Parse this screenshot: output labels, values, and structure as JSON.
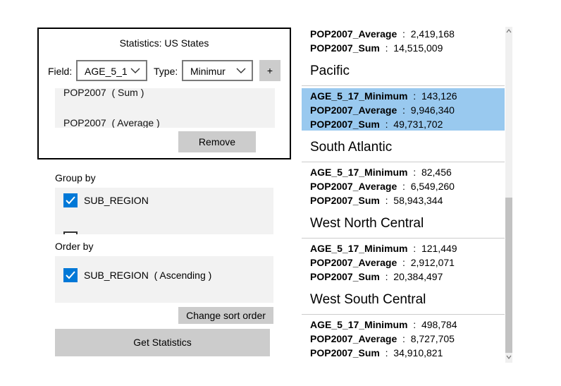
{
  "statistics": {
    "title": "Statistics: US States",
    "field_label": "Field:",
    "field_value": "AGE_5_1",
    "type_label": "Type:",
    "type_value": "Minimur",
    "add_label": "+",
    "fields": [
      "POP2007  ( Sum )",
      "POP2007  ( Average )"
    ],
    "remove_label": "Remove"
  },
  "group_by": {
    "label": "Group by",
    "items": [
      {
        "label": "SUB_REGION",
        "checked": true
      },
      {
        "label": "",
        "checked": false
      }
    ]
  },
  "order_by": {
    "label": "Order by",
    "items": [
      {
        "label": "SUB_REGION  ( Ascending )",
        "checked": true
      }
    ],
    "change_sort_label": "Change sort order"
  },
  "get_statistics_label": "Get Statistics",
  "results": {
    "partial_top": [
      {
        "field": "POP2007_Average",
        "value": "2,419,168"
      },
      {
        "field": "POP2007_Sum",
        "value": "14,515,009"
      }
    ],
    "groups": [
      {
        "name": "Pacific",
        "selected": true,
        "rows": [
          {
            "field": "AGE_5_17_Minimum",
            "value": "143,126"
          },
          {
            "field": "POP2007_Average",
            "value": "9,946,340"
          },
          {
            "field": "POP2007_Sum",
            "value": "49,731,702"
          }
        ]
      },
      {
        "name": "South Atlantic",
        "selected": false,
        "rows": [
          {
            "field": "AGE_5_17_Minimum",
            "value": "82,456"
          },
          {
            "field": "POP2007_Average",
            "value": "6,549,260"
          },
          {
            "field": "POP2007_Sum",
            "value": "58,943,344"
          }
        ]
      },
      {
        "name": "West North Central",
        "selected": false,
        "rows": [
          {
            "field": "AGE_5_17_Minimum",
            "value": "121,449"
          },
          {
            "field": "POP2007_Average",
            "value": "2,912,071"
          },
          {
            "field": "POP2007_Sum",
            "value": "20,384,497"
          }
        ]
      },
      {
        "name": "West South Central",
        "selected": false,
        "rows": [
          {
            "field": "AGE_5_17_Minimum",
            "value": "498,784"
          },
          {
            "field": "POP2007_Average",
            "value": "8,727,705"
          },
          {
            "field": "POP2007_Sum",
            "value": "34,910,821"
          }
        ]
      }
    ]
  },
  "colors": {
    "accent": "#0078d7",
    "selection": "#99c9ef",
    "button": "#cccccc",
    "panel": "#f2f2f2"
  }
}
